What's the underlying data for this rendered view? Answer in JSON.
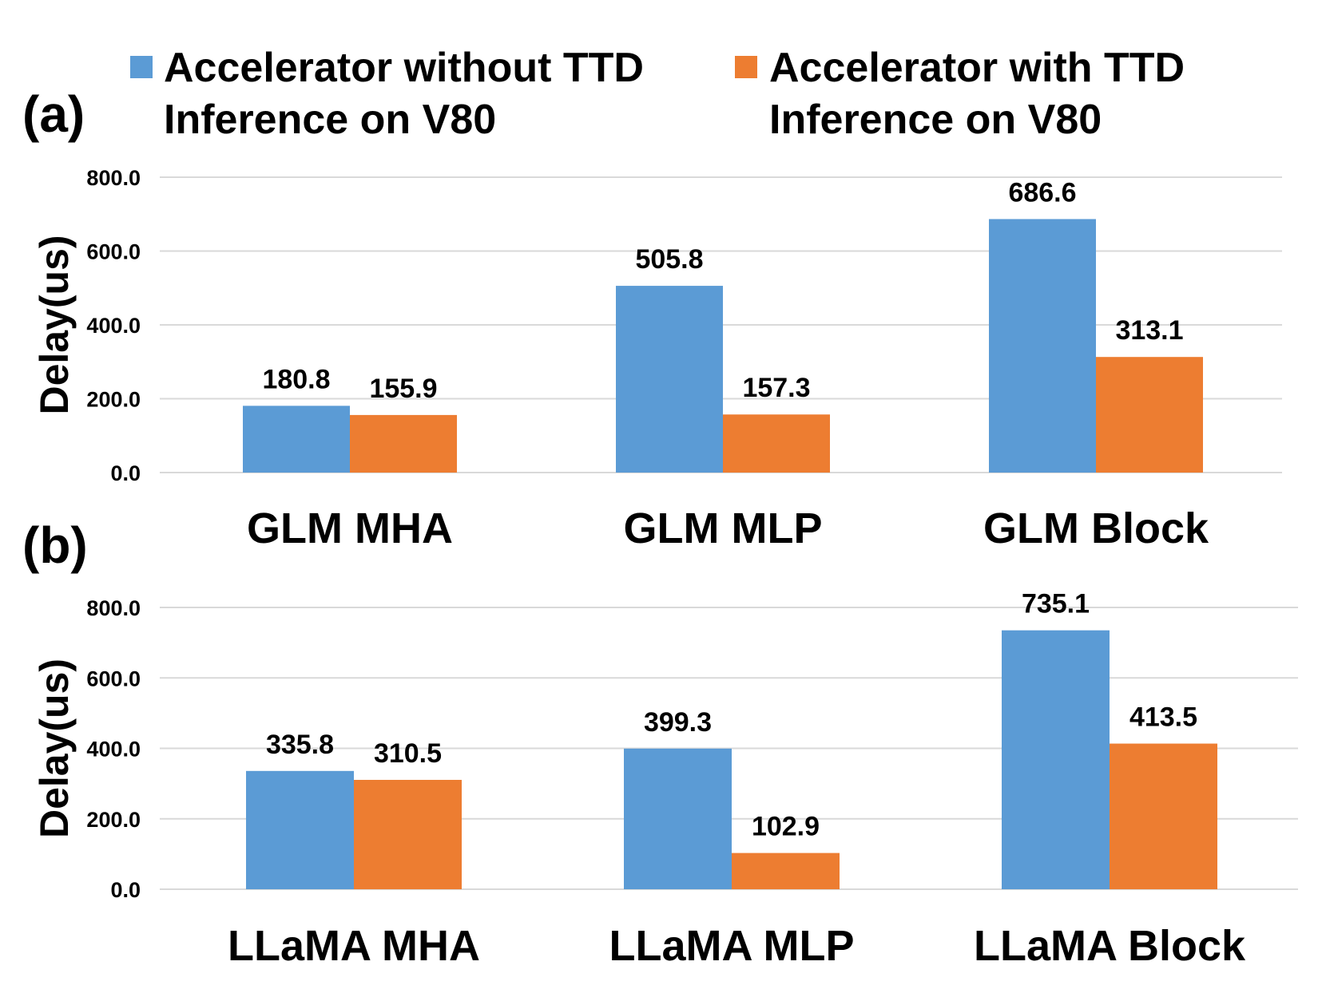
{
  "legend": {
    "series1_line1": "Accelerator without TTD",
    "series1_line2": "Inference on V80",
    "series2_line1": "Accelerator with TTD",
    "series2_line2": "Inference on V80"
  },
  "colors": {
    "series1": "#5B9BD5",
    "series2": "#ED7D31",
    "grid": "#D9D9D9"
  },
  "chart_data": [
    {
      "type": "bar",
      "panel_label": "(a)",
      "categories": [
        "GLM MHA",
        "GLM MLP",
        "GLM Block"
      ],
      "series": [
        {
          "name": "Accelerator without TTD Inference on V80",
          "values": [
            180.8,
            505.8,
            686.6
          ],
          "labels": [
            "180.8",
            "505.8",
            "686.6"
          ]
        },
        {
          "name": "Accelerator with TTD Inference on V80",
          "values": [
            155.9,
            157.3,
            313.1
          ],
          "labels": [
            "155.9",
            "157.3",
            "313.1"
          ]
        }
      ],
      "ylabel": "Delay(us)",
      "ylim": [
        0,
        800
      ],
      "yticks": [
        "0.0",
        "200.0",
        "400.0",
        "600.0",
        "800.0"
      ],
      "grid": true,
      "legend_position": "top"
    },
    {
      "type": "bar",
      "panel_label": "(b)",
      "categories": [
        "LLaMA MHA",
        "LLaMA MLP",
        "LLaMA Block"
      ],
      "series": [
        {
          "name": "Accelerator without TTD Inference on V80",
          "values": [
            335.8,
            399.3,
            735.1
          ],
          "labels": [
            "335.8",
            "399.3",
            "735.1"
          ]
        },
        {
          "name": "Accelerator with TTD Inference on V80",
          "values": [
            310.5,
            102.9,
            413.5
          ],
          "labels": [
            "310.5",
            "102.9",
            "413.5"
          ]
        }
      ],
      "ylabel": "Delay(us)",
      "ylim": [
        0,
        800
      ],
      "yticks": [
        "0.0",
        "200.0",
        "400.0",
        "600.0",
        "800.0"
      ],
      "grid": true,
      "legend_position": "top"
    }
  ]
}
